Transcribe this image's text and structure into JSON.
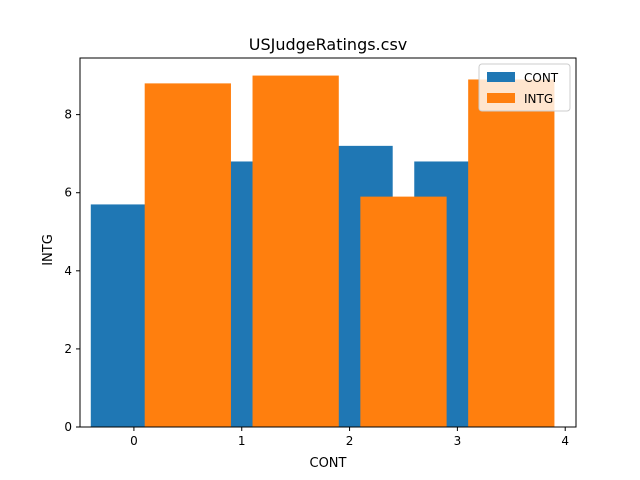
{
  "chart_data": {
    "type": "bar",
    "title": "USJudgeRatings.csv",
    "xlabel": "CONT",
    "ylabel": "INTG",
    "xlim": [
      -0.5,
      4.1
    ],
    "ylim": [
      0,
      9.45
    ],
    "xticks": [
      0,
      1,
      2,
      3,
      4
    ],
    "yticks": [
      0,
      2,
      4,
      6,
      8
    ],
    "bar_width": 0.8,
    "series": [
      {
        "name": "CONT",
        "color": "#1f77b4",
        "x": [
          0,
          1,
          2,
          3
        ],
        "values": [
          5.7,
          6.8,
          7.2,
          6.8
        ]
      },
      {
        "name": "INTG",
        "color": "#ff7f0e",
        "x": [
          0.5,
          1.5,
          2.5,
          3.5
        ],
        "values": [
          8.8,
          9.0,
          5.9,
          8.9
        ]
      }
    ],
    "legend": {
      "position": "top-right"
    },
    "grid": false
  }
}
